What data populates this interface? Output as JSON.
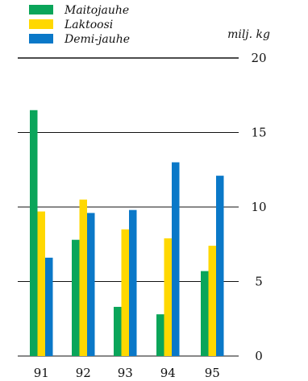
{
  "chart_data": {
    "type": "bar",
    "unit_label": "milj. kg",
    "categories": [
      "91",
      "92",
      "93",
      "94",
      "95"
    ],
    "series": [
      {
        "name": "Maitojauhe",
        "color": "#0aa55a",
        "values": [
          16.5,
          7.8,
          3.3,
          2.8,
          5.7
        ]
      },
      {
        "name": "Laktoosi",
        "color": "#ffd800",
        "values": [
          9.7,
          10.5,
          8.5,
          7.9,
          7.4
        ]
      },
      {
        "name": "Demi-jauhe",
        "color": "#0a78c8",
        "values": [
          6.6,
          9.6,
          9.8,
          13.0,
          12.1
        ]
      }
    ],
    "ylim": [
      0,
      20
    ],
    "yticks": [
      "0",
      "5",
      "10",
      "15",
      "20"
    ],
    "grid": true,
    "legend_position": "top-left"
  }
}
